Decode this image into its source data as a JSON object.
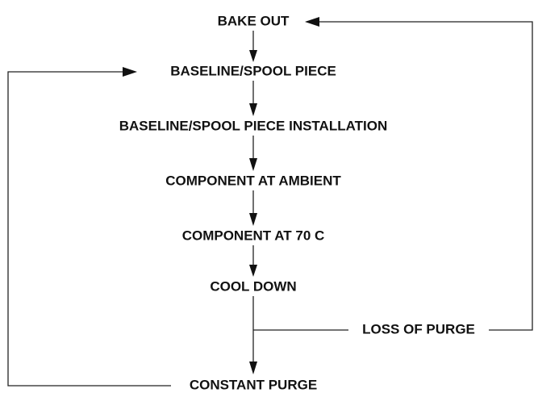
{
  "nodes": [
    {
      "label": "BAKE OUT"
    },
    {
      "label": "BASELINE/SPOOL PIECE"
    },
    {
      "label": "BASELINE/SPOOL PIECE INSTALLATION"
    },
    {
      "label": "COMPONENT AT AMBIENT"
    },
    {
      "label": "COMPONENT AT 70 C"
    },
    {
      "label": "COOL DOWN"
    },
    {
      "label": "LOSS OF PURGE"
    },
    {
      "label": "CONSTANT PURGE"
    }
  ]
}
